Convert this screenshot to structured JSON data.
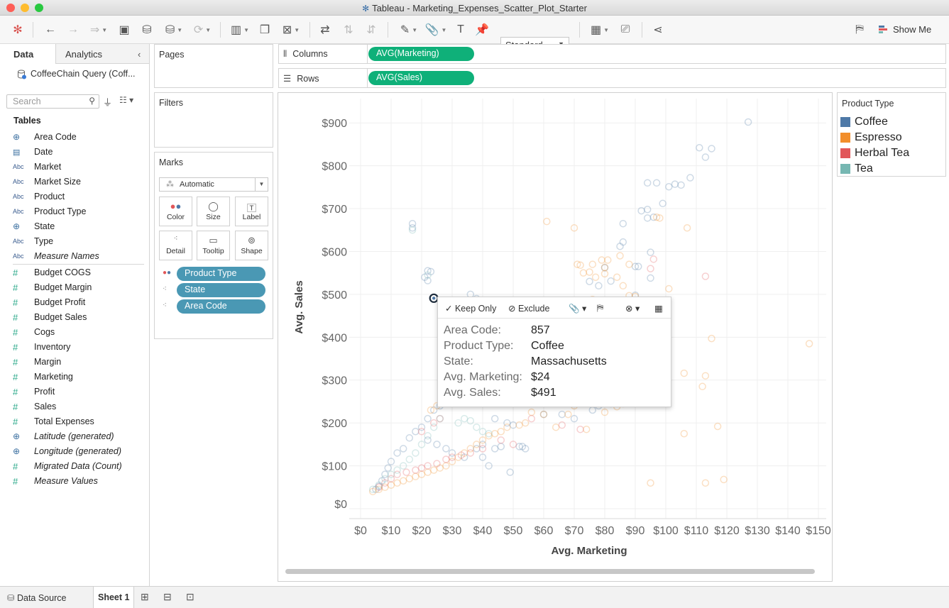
{
  "window": {
    "title": "Tableau - Marketing_Expenses_Scatter_Plot_Starter"
  },
  "toolbar": {
    "format": "Standard",
    "show_me": "Show Me"
  },
  "data_pane": {
    "tabs": {
      "data": "Data",
      "analytics": "Analytics"
    },
    "datasource": "CoffeeChain Query (Coff...",
    "search_placeholder": "Search",
    "tables_header": "Tables",
    "dimensions": [
      {
        "label": "Area Code",
        "icon": "globe-icon"
      },
      {
        "label": "Date",
        "icon": "calendar-icon"
      },
      {
        "label": "Market",
        "icon": "abc-icon"
      },
      {
        "label": "Market Size",
        "icon": "abc-icon"
      },
      {
        "label": "Product",
        "icon": "abc-icon"
      },
      {
        "label": "Product Type",
        "icon": "abc-icon"
      },
      {
        "label": "State",
        "icon": "globe-icon"
      },
      {
        "label": "Type",
        "icon": "abc-icon"
      },
      {
        "label": "Measure Names",
        "icon": "abc-icon",
        "italic": true
      }
    ],
    "measures": [
      {
        "label": "Budget COGS",
        "icon": "number-icon"
      },
      {
        "label": "Budget Margin",
        "icon": "number-icon"
      },
      {
        "label": "Budget Profit",
        "icon": "number-icon"
      },
      {
        "label": "Budget Sales",
        "icon": "number-icon"
      },
      {
        "label": "Cogs",
        "icon": "number-icon"
      },
      {
        "label": "Inventory",
        "icon": "number-icon"
      },
      {
        "label": "Margin",
        "icon": "number-icon"
      },
      {
        "label": "Marketing",
        "icon": "number-icon"
      },
      {
        "label": "Profit",
        "icon": "number-icon"
      },
      {
        "label": "Sales",
        "icon": "number-icon"
      },
      {
        "label": "Total Expenses",
        "icon": "number-icon"
      },
      {
        "label": "Latitude (generated)",
        "icon": "globe-icon",
        "italic": true
      },
      {
        "label": "Longitude (generated)",
        "icon": "globe-icon",
        "italic": true
      },
      {
        "label": "Migrated Data (Count)",
        "icon": "number-icon",
        "italic": true
      },
      {
        "label": "Measure Values",
        "icon": "number-icon",
        "italic": true
      }
    ]
  },
  "cards": {
    "pages": "Pages",
    "filters": "Filters",
    "marks": "Marks",
    "mark_type": "Automatic",
    "mark_buttons": [
      "Color",
      "Size",
      "Label",
      "Detail",
      "Tooltip",
      "Shape"
    ],
    "mark_fields": [
      "Product Type",
      "State",
      "Area Code"
    ]
  },
  "shelves": {
    "columns_label": "Columns",
    "columns_pill": "AVG(Marketing)",
    "rows_label": "Rows",
    "rows_pill": "AVG(Sales)"
  },
  "legend": {
    "title": "Product Type",
    "items": [
      {
        "label": "Coffee",
        "color": "#4e79a7"
      },
      {
        "label": "Espresso",
        "color": "#f28e2b"
      },
      {
        "label": "Herbal Tea",
        "color": "#e15759"
      },
      {
        "label": "Tea",
        "color": "#76b7b2"
      }
    ]
  },
  "tooltip": {
    "keep_only": "Keep Only",
    "exclude": "Exclude",
    "rows": [
      {
        "key": "Area Code:",
        "value": "857"
      },
      {
        "key": "Product Type:",
        "value": "Coffee"
      },
      {
        "key": "State:",
        "value": "Massachusetts"
      },
      {
        "key": "Avg. Marketing:",
        "value": "$24"
      },
      {
        "key": "Avg. Sales:",
        "value": "$491"
      }
    ]
  },
  "bottom_tabs": {
    "data_source": "Data Source",
    "sheet": "Sheet 1"
  },
  "chart_data": {
    "type": "scatter",
    "xlabel": "Avg. Marketing",
    "ylabel": "Avg. Sales",
    "x_ticks": [
      "$0",
      "$10",
      "$20",
      "$30",
      "$40",
      "$50",
      "$60",
      "$70",
      "$80",
      "$90",
      "$100",
      "$110",
      "$120",
      "$130",
      "$140",
      "$150"
    ],
    "y_ticks": [
      "$0",
      "$100",
      "$200",
      "$300",
      "$400",
      "$500",
      "$600",
      "$700",
      "$800",
      "$900"
    ],
    "xlim": [
      0,
      150
    ],
    "ylim": [
      0,
      950
    ],
    "grid": true,
    "highlighted_point": {
      "x": 24,
      "y": 491,
      "series": "Coffee"
    },
    "series": [
      {
        "name": "Coffee",
        "color": "#4e79a7",
        "points": [
          [
            127,
            902
          ],
          [
            111,
            842
          ],
          [
            115,
            840
          ],
          [
            113,
            820
          ],
          [
            97,
            760
          ],
          [
            94,
            760
          ],
          [
            103,
            757
          ],
          [
            101,
            751
          ],
          [
            105,
            755
          ],
          [
            108,
            772
          ],
          [
            99,
            712
          ],
          [
            92,
            695
          ],
          [
            94,
            698
          ],
          [
            94,
            678
          ],
          [
            96,
            680
          ],
          [
            86,
            665
          ],
          [
            17,
            665
          ],
          [
            17,
            655
          ],
          [
            86,
            622
          ],
          [
            85,
            612
          ],
          [
            95,
            598
          ],
          [
            80,
            562
          ],
          [
            22,
            555
          ],
          [
            23,
            553
          ],
          [
            21,
            540
          ],
          [
            22,
            532
          ],
          [
            95,
            538
          ],
          [
            91,
            565
          ],
          [
            90,
            565
          ],
          [
            75,
            530
          ],
          [
            82,
            531
          ],
          [
            78,
            520
          ],
          [
            90,
            498
          ],
          [
            36,
            500
          ],
          [
            38,
            490
          ],
          [
            62,
            480
          ],
          [
            64,
            478
          ],
          [
            55,
            460
          ],
          [
            74,
            485
          ],
          [
            30,
            300
          ],
          [
            32,
            310
          ],
          [
            35,
            290
          ],
          [
            28,
            260
          ],
          [
            26,
            240
          ],
          [
            24,
            230
          ],
          [
            22,
            210
          ],
          [
            20,
            190
          ],
          [
            18,
            180
          ],
          [
            16,
            165
          ],
          [
            14,
            140
          ],
          [
            12,
            130
          ],
          [
            10,
            110
          ],
          [
            9,
            95
          ],
          [
            8,
            80
          ],
          [
            7,
            65
          ],
          [
            6,
            52
          ],
          [
            5,
            45
          ],
          [
            22,
            160
          ],
          [
            25,
            150
          ],
          [
            28,
            140
          ],
          [
            30,
            130
          ],
          [
            34,
            120
          ],
          [
            38,
            140
          ],
          [
            40,
            150
          ],
          [
            44,
            140
          ],
          [
            46,
            145
          ],
          [
            48,
            200
          ],
          [
            50,
            195
          ],
          [
            44,
            210
          ],
          [
            52,
            145
          ],
          [
            53,
            145
          ],
          [
            54,
            140
          ],
          [
            60,
            220
          ],
          [
            66,
            220
          ],
          [
            70,
            210
          ],
          [
            76,
            230
          ],
          [
            78,
            240
          ],
          [
            82,
            245
          ],
          [
            85,
            260
          ],
          [
            49,
            85
          ],
          [
            42,
            100
          ],
          [
            40,
            120
          ]
        ]
      },
      {
        "name": "Espresso",
        "color": "#f28e2b",
        "points": [
          [
            61,
            670
          ],
          [
            70,
            655
          ],
          [
            107,
            655
          ],
          [
            98,
            678
          ],
          [
            97,
            680
          ],
          [
            71,
            570
          ],
          [
            72,
            568
          ],
          [
            76,
            570
          ],
          [
            79,
            580
          ],
          [
            81,
            580
          ],
          [
            85,
            590
          ],
          [
            80,
            563
          ],
          [
            88,
            570
          ],
          [
            84,
            540
          ],
          [
            86,
            520
          ],
          [
            80,
            548
          ],
          [
            77,
            540
          ],
          [
            75,
            552
          ],
          [
            73,
            550
          ],
          [
            90,
            495
          ],
          [
            85,
            485
          ],
          [
            88,
            497
          ],
          [
            70,
            475
          ],
          [
            72,
            470
          ],
          [
            76,
            488
          ],
          [
            101,
            513
          ],
          [
            115,
            397
          ],
          [
            147,
            385
          ],
          [
            113,
            310
          ],
          [
            106,
            316
          ],
          [
            112,
            285
          ],
          [
            117,
            192
          ],
          [
            106,
            175
          ],
          [
            119,
            68
          ],
          [
            113,
            60
          ],
          [
            95,
            60
          ],
          [
            72,
            250
          ],
          [
            70,
            240
          ],
          [
            68,
            220
          ],
          [
            64,
            190
          ],
          [
            74,
            185
          ],
          [
            86,
            245
          ],
          [
            84,
            238
          ],
          [
            80,
            225
          ],
          [
            56,
            225
          ],
          [
            60,
            220
          ],
          [
            54,
            200
          ],
          [
            52,
            195
          ],
          [
            48,
            190
          ],
          [
            46,
            180
          ],
          [
            44,
            175
          ],
          [
            42,
            170
          ],
          [
            40,
            160
          ],
          [
            38,
            150
          ],
          [
            36,
            140
          ],
          [
            34,
            130
          ],
          [
            32,
            120
          ],
          [
            30,
            110
          ],
          [
            28,
            100
          ],
          [
            26,
            95
          ],
          [
            24,
            90
          ],
          [
            22,
            85
          ],
          [
            20,
            80
          ],
          [
            18,
            75
          ],
          [
            16,
            70
          ],
          [
            14,
            65
          ],
          [
            12,
            60
          ],
          [
            10,
            55
          ],
          [
            8,
            50
          ],
          [
            6,
            45
          ],
          [
            4,
            40
          ],
          [
            27,
            250
          ],
          [
            25,
            240
          ],
          [
            23,
            230
          ],
          [
            29,
            270
          ],
          [
            31,
            280
          ],
          [
            33,
            300
          ],
          [
            35,
            310
          ],
          [
            37,
            320
          ],
          [
            39,
            330
          ],
          [
            41,
            340
          ],
          [
            43,
            350
          ]
        ]
      },
      {
        "name": "Herbal Tea",
        "color": "#e15759",
        "points": [
          [
            96,
            582
          ],
          [
            113,
            542
          ],
          [
            95,
            560
          ],
          [
            72,
            185
          ],
          [
            66,
            195
          ],
          [
            56,
            210
          ],
          [
            40,
            140
          ],
          [
            36,
            130
          ],
          [
            33,
            125
          ],
          [
            30,
            120
          ],
          [
            28,
            115
          ],
          [
            25,
            105
          ],
          [
            22,
            100
          ],
          [
            20,
            95
          ],
          [
            18,
            90
          ],
          [
            15,
            85
          ],
          [
            12,
            80
          ],
          [
            10,
            70
          ],
          [
            8,
            60
          ],
          [
            6,
            50
          ],
          [
            20,
            180
          ],
          [
            24,
            200
          ],
          [
            26,
            210
          ],
          [
            46,
            160
          ],
          [
            50,
            150
          ]
        ]
      },
      {
        "name": "Tea",
        "color": "#76b7b2",
        "points": [
          [
            17,
            650
          ],
          [
            22,
            545
          ],
          [
            30,
            390
          ],
          [
            34,
            380
          ],
          [
            44,
            330
          ],
          [
            48,
            310
          ],
          [
            50,
            305
          ],
          [
            55,
            320
          ],
          [
            58,
            300
          ],
          [
            60,
            285
          ],
          [
            62,
            300
          ],
          [
            26,
            210
          ],
          [
            24,
            190
          ],
          [
            22,
            170
          ],
          [
            20,
            150
          ],
          [
            18,
            130
          ],
          [
            16,
            115
          ],
          [
            14,
            100
          ],
          [
            12,
            90
          ],
          [
            10,
            80
          ],
          [
            8,
            70
          ],
          [
            6,
            55
          ],
          [
            4,
            45
          ],
          [
            32,
            200
          ],
          [
            34,
            210
          ],
          [
            36,
            205
          ],
          [
            38,
            190
          ],
          [
            40,
            180
          ],
          [
            42,
            175
          ]
        ]
      }
    ]
  }
}
